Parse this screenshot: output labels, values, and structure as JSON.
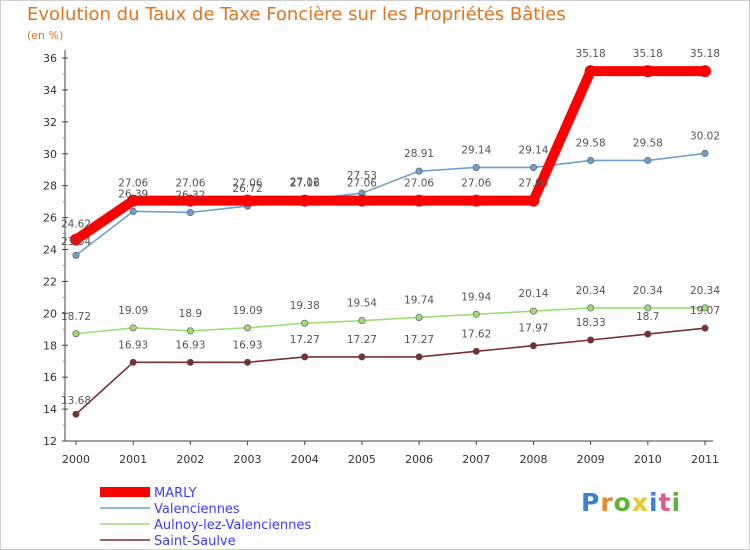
{
  "chart_data": {
    "type": "line",
    "title": "Evolution du Taux de Taxe Foncière sur les Propriétés Bâties",
    "unit_label": "(en %)",
    "xlabel": "",
    "ylabel": "",
    "ylim": [
      12,
      36
    ],
    "yticks": [
      12,
      14,
      16,
      18,
      20,
      22,
      24,
      26,
      28,
      30,
      32,
      34,
      36
    ],
    "categories": [
      "2000",
      "2001",
      "2002",
      "2003",
      "2004",
      "2005",
      "2006",
      "2007",
      "2008",
      "2009",
      "2010",
      "2011"
    ],
    "series": [
      {
        "name": "MARLY",
        "color": "#ff0000",
        "values": [
          24.62,
          27.06,
          27.06,
          27.06,
          27.06,
          27.06,
          27.06,
          27.06,
          27.06,
          35.18,
          35.18,
          35.18
        ],
        "labels": [
          "24.62",
          "27.06",
          "27.06",
          "27.06",
          "27.06",
          "27.06",
          "27.06",
          "27.06",
          "27.06",
          "35.18",
          "35.18",
          "35.18"
        ]
      },
      {
        "name": "Valenciennes",
        "color": "#6f9fd0",
        "values": [
          23.64,
          26.39,
          26.32,
          26.72,
          27.12,
          27.53,
          28.91,
          29.14,
          29.14,
          29.58,
          29.58,
          30.02
        ],
        "labels": [
          "23.64",
          "26.39",
          "26.32",
          "26.72",
          "27.12",
          "27.53",
          "28.91",
          "29.14",
          "29.14",
          "29.58",
          "29.58",
          "30.02"
        ]
      },
      {
        "name": "Aulnoy-lez-Valenciennes",
        "color": "#9edc78",
        "values": [
          18.72,
          19.09,
          18.9,
          19.09,
          19.38,
          19.54,
          19.74,
          19.94,
          20.14,
          20.34,
          20.34,
          20.34
        ],
        "labels": [
          "18.72",
          "19.09",
          "18.9",
          "19.09",
          "19.38",
          "19.54",
          "19.74",
          "19.94",
          "20.14",
          "20.34",
          "20.34",
          "20.34"
        ]
      },
      {
        "name": "Saint-Saulve",
        "color": "#7a2f2f",
        "values": [
          13.68,
          16.93,
          16.93,
          16.93,
          17.27,
          17.27,
          17.27,
          17.62,
          17.97,
          18.33,
          18.7,
          19.07
        ],
        "labels": [
          "13.68",
          "16.93",
          "16.93",
          "16.93",
          "17.27",
          "17.27",
          "17.27",
          "17.62",
          "17.97",
          "18.33",
          "18.7",
          "19.07"
        ]
      }
    ],
    "legend_position": "bottom-left",
    "grid": false
  },
  "branding": {
    "letters": [
      "P",
      "r",
      "o",
      "x",
      "i",
      "t",
      "i"
    ],
    "colors": [
      "#3b82d6",
      "#e8892b",
      "#5fb33a",
      "#e8c92b",
      "#3b82d6",
      "#e05a8a",
      "#5fb33a"
    ]
  }
}
